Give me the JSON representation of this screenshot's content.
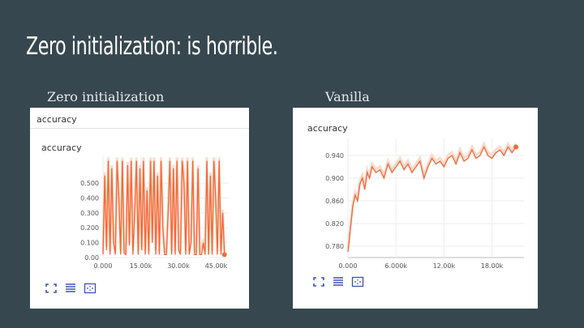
{
  "slide": {
    "title": "Zero initialization: is horrible.",
    "left_caption": "Zero initialization",
    "right_caption": "Vanilla"
  },
  "colors": {
    "background": "#37474f",
    "series": "#f26b38",
    "series_light": "#fadccf"
  },
  "left_panel": {
    "header": "accuracy",
    "toolbar_icons": [
      "expand-icon",
      "data-table-icon",
      "fit-domain-icon"
    ]
  },
  "right_panel": {
    "toolbar_icons": [
      "expand-icon",
      "data-table-icon",
      "fit-domain-icon"
    ]
  },
  "chart_data": [
    {
      "type": "line",
      "title": "accuracy",
      "xlabel": "",
      "ylabel": "",
      "xlim": [
        0,
        50000
      ],
      "ylim": [
        0,
        0.68
      ],
      "x_ticks": [
        "0.000",
        "15.00k",
        "30.00k",
        "45.00k"
      ],
      "y_ticks": [
        "0.00",
        "0.100",
        "0.200",
        "0.300",
        "0.400",
        "0.500"
      ],
      "series": [
        {
          "smoothed": true,
          "x": [
            0,
            700,
            1400,
            2100,
            2800,
            3500,
            4200,
            4900,
            5600,
            6300,
            7000,
            7700,
            8400,
            9100,
            9800,
            10500,
            11200,
            11900,
            12600,
            13300,
            14000,
            14700,
            15400,
            16100,
            16800,
            17500,
            18200,
            18900,
            19600,
            20300,
            21000,
            21700,
            22400,
            23100,
            23800,
            24500,
            25200,
            25900,
            26600,
            27300,
            28000,
            28700,
            29400,
            30100,
            30800,
            31500,
            32200,
            32900,
            33600,
            34300,
            35000,
            35700,
            36400,
            37100,
            37800,
            38500,
            39200,
            39900,
            40600,
            41300,
            42000,
            42700,
            43400,
            44100,
            44800,
            45500,
            46200,
            46900,
            47600,
            48300
          ],
          "values": [
            0.02,
            0.55,
            0.05,
            0.65,
            0.02,
            0.6,
            0.1,
            0.02,
            0.65,
            0.4,
            0.02,
            0.65,
            0.03,
            0.02,
            0.62,
            0.08,
            0.65,
            0.02,
            0.3,
            0.65,
            0.02,
            0.6,
            0.05,
            0.65,
            0.02,
            0.45,
            0.02,
            0.65,
            0.1,
            0.65,
            0.02,
            0.55,
            0.02,
            0.65,
            0.2,
            0.02,
            0.02,
            0.3,
            0.65,
            0.02,
            0.6,
            0.02,
            0.65,
            0.05,
            0.02,
            0.65,
            0.5,
            0.02,
            0.65,
            0.02,
            0.1,
            0.65,
            0.02,
            0.02,
            0.6,
            0.02,
            0.02,
            0.1,
            0.02,
            0.65,
            0.02,
            0.55,
            0.02,
            0.65,
            0.4,
            0.02,
            0.65,
            0.02,
            0.3,
            0.02
          ]
        }
      ]
    },
    {
      "type": "line",
      "title": "accuracy",
      "xlabel": "",
      "ylabel": "",
      "xlim": [
        0,
        22000
      ],
      "ylim": [
        0.76,
        0.97
      ],
      "x_ticks": [
        "0.000",
        "6.000k",
        "12.00k",
        "18.00k"
      ],
      "y_ticks": [
        "0.780",
        "0.820",
        "0.860",
        "0.900",
        "0.940"
      ],
      "series": [
        {
          "smoothed": true,
          "x": [
            0,
            300,
            600,
            900,
            1200,
            1500,
            1800,
            2100,
            2400,
            2700,
            3000,
            3500,
            4000,
            4500,
            5000,
            5500,
            6000,
            6500,
            7000,
            7500,
            8000,
            8500,
            9000,
            9500,
            10000,
            10500,
            11000,
            11500,
            12000,
            12500,
            13000,
            13500,
            14000,
            14500,
            15000,
            15500,
            16000,
            16500,
            17000,
            17500,
            18000,
            18500,
            19000,
            19500,
            20000,
            20500,
            21000
          ],
          "values": [
            0.77,
            0.81,
            0.85,
            0.87,
            0.86,
            0.89,
            0.9,
            0.88,
            0.91,
            0.9,
            0.92,
            0.91,
            0.915,
            0.9,
            0.925,
            0.91,
            0.92,
            0.93,
            0.915,
            0.925,
            0.91,
            0.92,
            0.93,
            0.9,
            0.92,
            0.935,
            0.925,
            0.93,
            0.92,
            0.935,
            0.94,
            0.925,
            0.945,
            0.93,
            0.935,
            0.95,
            0.935,
            0.94,
            0.955,
            0.94,
            0.935,
            0.945,
            0.95,
            0.94,
            0.955,
            0.945,
            0.955
          ]
        }
      ]
    }
  ]
}
